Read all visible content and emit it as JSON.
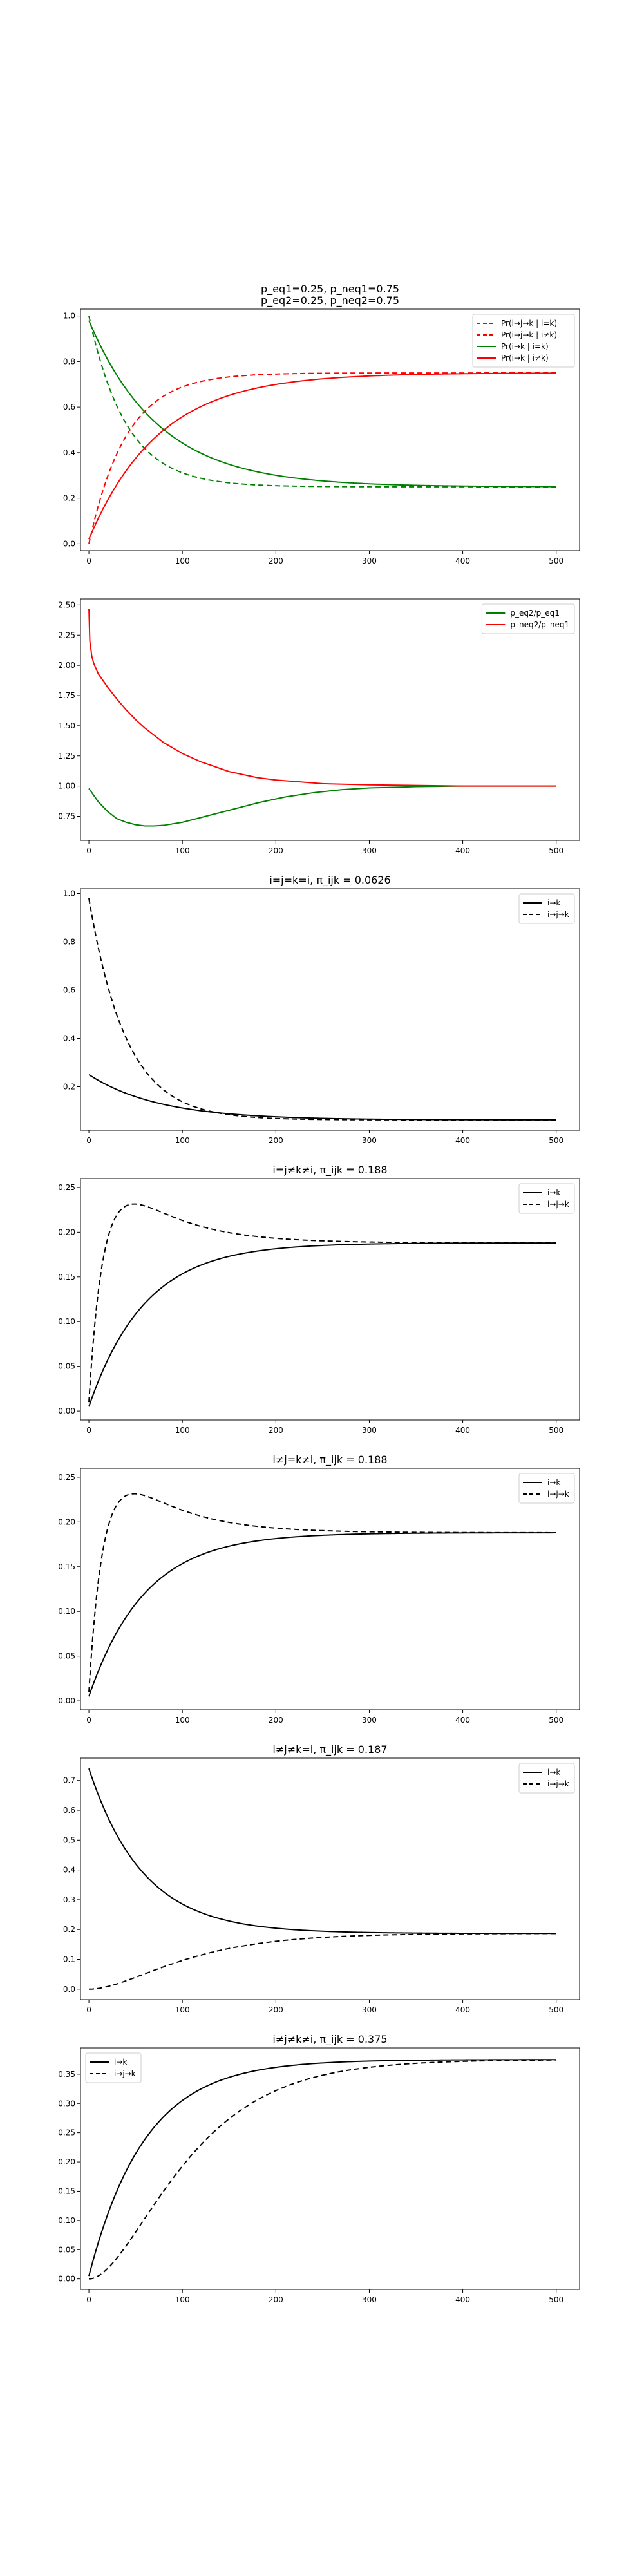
{
  "colors": {
    "green": "#008000",
    "red": "#ff0000",
    "black": "#000000"
  },
  "chart_data": [
    {
      "type": "line",
      "title_lines": [
        "p_eq1=0.25, p_neq1=0.75",
        "p_eq2=0.25, p_neq2=0.75"
      ],
      "xlim": [
        -9,
        525
      ],
      "ylim": [
        -0.03,
        1.03
      ],
      "xticks": [
        0,
        100,
        200,
        300,
        400,
        500
      ],
      "yticks": [
        0.0,
        0.2,
        0.4,
        0.6,
        0.8,
        1.0
      ],
      "ytick_labels": [
        "0.0",
        "0.2",
        "0.4",
        "0.6",
        "0.8",
        "1.0"
      ],
      "legend_loc": "upper-right",
      "series": [
        {
          "name": "Pr(i→j→k | i=k)",
          "color": "#008000",
          "dash": true,
          "model": "decay",
          "start": 1.0,
          "end": 0.25,
          "tau": 40
        },
        {
          "name": "Pr(i→j→k | i≠k)",
          "color": "#ff0000",
          "dash": true,
          "model": "rise",
          "start": 0.0,
          "end": 0.75,
          "tau": 40
        },
        {
          "name": "Pr(i→k | i=k)",
          "color": "#008000",
          "dash": false,
          "model": "decay",
          "start": 0.98,
          "end": 0.25,
          "tau": 75
        },
        {
          "name": "Pr(i→k | i≠k)",
          "color": "#ff0000",
          "dash": false,
          "model": "rise",
          "start": 0.02,
          "end": 0.75,
          "tau": 75
        }
      ]
    },
    {
      "type": "line",
      "title_lines": [],
      "xlim": [
        -9,
        525
      ],
      "ylim": [
        0.55,
        2.55
      ],
      "xticks": [
        0,
        100,
        200,
        300,
        400,
        500
      ],
      "yticks": [
        0.75,
        1.0,
        1.25,
        1.5,
        1.75,
        2.0,
        2.25,
        2.5
      ],
      "ytick_labels": [
        "0.75",
        "1.00",
        "1.25",
        "1.50",
        "1.75",
        "2.00",
        "2.25",
        "2.50"
      ],
      "legend_loc": "upper-right",
      "series": [
        {
          "name": "p_eq2/p_eq1",
          "color": "#008000",
          "dash": false,
          "model": "points",
          "points": [
            [
              0,
              0.98
            ],
            [
              10,
              0.87
            ],
            [
              20,
              0.79
            ],
            [
              30,
              0.73
            ],
            [
              40,
              0.7
            ],
            [
              50,
              0.68
            ],
            [
              60,
              0.67
            ],
            [
              70,
              0.67
            ],
            [
              80,
              0.675
            ],
            [
              100,
              0.7
            ],
            [
              120,
              0.74
            ],
            [
              150,
              0.8
            ],
            [
              180,
              0.86
            ],
            [
              210,
              0.91
            ],
            [
              240,
              0.945
            ],
            [
              270,
              0.97
            ],
            [
              300,
              0.985
            ],
            [
              350,
              0.995
            ],
            [
              400,
              1.0
            ],
            [
              500,
              1.0
            ]
          ]
        },
        {
          "name": "p_neq2/p_neq1",
          "color": "#ff0000",
          "dash": false,
          "model": "points",
          "points": [
            [
              0,
              2.47
            ],
            [
              1,
              2.2
            ],
            [
              3,
              2.08
            ],
            [
              5,
              2.02
            ],
            [
              10,
              1.93
            ],
            [
              20,
              1.82
            ],
            [
              30,
              1.72
            ],
            [
              40,
              1.63
            ],
            [
              50,
              1.55
            ],
            [
              60,
              1.48
            ],
            [
              70,
              1.42
            ],
            [
              80,
              1.36
            ],
            [
              100,
              1.27
            ],
            [
              120,
              1.2
            ],
            [
              150,
              1.12
            ],
            [
              180,
              1.07
            ],
            [
              200,
              1.05
            ],
            [
              250,
              1.02
            ],
            [
              300,
              1.01
            ],
            [
              400,
              1.0
            ],
            [
              500,
              1.0
            ]
          ]
        }
      ]
    },
    {
      "type": "line",
      "title_lines": [
        "i=j=k=i, π_ijk = 0.0626"
      ],
      "xlim": [
        -9,
        525
      ],
      "ylim": [
        0.02,
        1.02
      ],
      "xticks": [
        0,
        100,
        200,
        300,
        400,
        500
      ],
      "yticks": [
        0.2,
        0.4,
        0.6,
        0.8,
        1.0
      ],
      "ytick_labels": [
        "0.2",
        "0.4",
        "0.6",
        "0.8",
        "1.0"
      ],
      "legend_loc": "upper-right",
      "series": [
        {
          "name": "i→k",
          "color": "#000000",
          "dash": false,
          "model": "decay",
          "start": 0.25,
          "end": 0.0626,
          "tau": 75
        },
        {
          "name": "i→j→k",
          "color": "#000000",
          "dash": true,
          "model": "decay",
          "start": 0.98,
          "end": 0.0626,
          "tau": 40
        }
      ]
    },
    {
      "type": "line",
      "title_lines": [
        "i=j≠k≠i, π_ijk = 0.188"
      ],
      "xlim": [
        -9,
        525
      ],
      "ylim": [
        -0.01,
        0.26
      ],
      "xticks": [
        0,
        100,
        200,
        300,
        400,
        500
      ],
      "yticks": [
        0.0,
        0.05,
        0.1,
        0.15,
        0.2,
        0.25
      ],
      "ytick_labels": [
        "0.00",
        "0.05",
        "0.10",
        "0.15",
        "0.20",
        "0.25"
      ],
      "legend_loc": "upper-right",
      "series": [
        {
          "name": "i→k",
          "color": "#000000",
          "dash": false,
          "model": "rise",
          "start": 0.005,
          "end": 0.188,
          "tau": 60
        },
        {
          "name": "i→j→k",
          "color": "#000000",
          "dash": true,
          "model": "hump",
          "start": 0.01,
          "end": 0.188,
          "tau_rise": 18,
          "tau_fall": 62,
          "peak": 0.25
        }
      ]
    },
    {
      "type": "line",
      "title_lines": [
        "i≠j=k≠i, π_ijk = 0.188"
      ],
      "xlim": [
        -9,
        525
      ],
      "ylim": [
        -0.01,
        0.26
      ],
      "xticks": [
        0,
        100,
        200,
        300,
        400,
        500
      ],
      "yticks": [
        0.0,
        0.05,
        0.1,
        0.15,
        0.2,
        0.25
      ],
      "ytick_labels": [
        "0.00",
        "0.05",
        "0.10",
        "0.15",
        "0.20",
        "0.25"
      ],
      "legend_loc": "upper-right",
      "series": [
        {
          "name": "i→k",
          "color": "#000000",
          "dash": false,
          "model": "rise",
          "start": 0.005,
          "end": 0.188,
          "tau": 60
        },
        {
          "name": "i→j→k",
          "color": "#000000",
          "dash": true,
          "model": "hump",
          "start": 0.01,
          "end": 0.188,
          "tau_rise": 18,
          "tau_fall": 62,
          "peak": 0.25
        }
      ]
    },
    {
      "type": "line",
      "title_lines": [
        "i≠j≠k=i, π_ijk = 0.187"
      ],
      "xlim": [
        -9,
        525
      ],
      "ylim": [
        -0.035,
        0.775
      ],
      "xticks": [
        0,
        100,
        200,
        300,
        400,
        500
      ],
      "yticks": [
        0.0,
        0.1,
        0.2,
        0.3,
        0.4,
        0.5,
        0.6,
        0.7
      ],
      "ytick_labels": [
        "0.0",
        "0.1",
        "0.2",
        "0.3",
        "0.4",
        "0.5",
        "0.6",
        "0.7"
      ],
      "legend_loc": "upper-right",
      "series": [
        {
          "name": "i→k",
          "color": "#000000",
          "dash": false,
          "model": "decay",
          "start": 0.74,
          "end": 0.187,
          "tau": 58
        },
        {
          "name": "i→j→k",
          "color": "#000000",
          "dash": true,
          "model": "sig",
          "start": 0.0,
          "end": 0.187,
          "tau": 58
        }
      ]
    },
    {
      "type": "line",
      "title_lines": [
        "i≠j≠k≠i, π_ijk = 0.375"
      ],
      "xlim": [
        -9,
        525
      ],
      "ylim": [
        -0.018,
        0.395
      ],
      "xticks": [
        0,
        100,
        200,
        300,
        400,
        500
      ],
      "yticks": [
        0.0,
        0.05,
        0.1,
        0.15,
        0.2,
        0.25,
        0.3,
        0.35
      ],
      "ytick_labels": [
        "0.00",
        "0.05",
        "0.10",
        "0.15",
        "0.20",
        "0.25",
        "0.30",
        "0.35"
      ],
      "legend_loc": "upper-left",
      "series": [
        {
          "name": "i→k",
          "color": "#000000",
          "dash": false,
          "model": "rise",
          "start": 0.005,
          "end": 0.375,
          "tau": 60
        },
        {
          "name": "i→j→k",
          "color": "#000000",
          "dash": true,
          "model": "sig",
          "start": 0.0,
          "end": 0.375,
          "tau": 58
        }
      ]
    }
  ]
}
